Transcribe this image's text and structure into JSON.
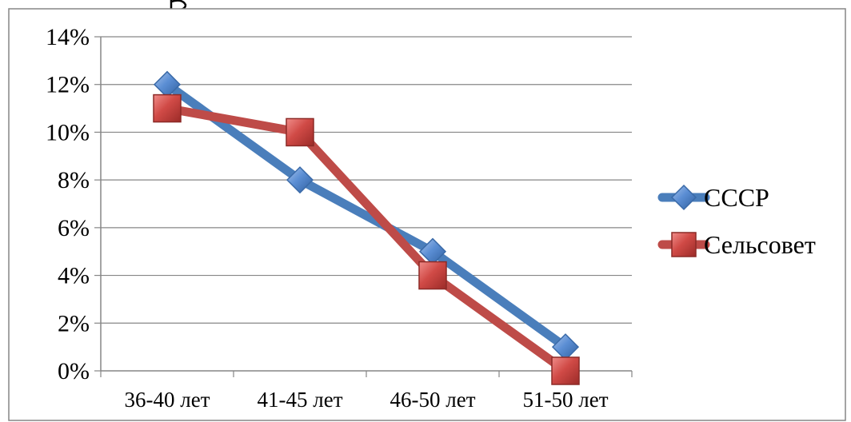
{
  "chart_data": {
    "type": "line",
    "categories": [
      "36-40 лет",
      "41-45 лет",
      "46-50 лет",
      "51-50 лет"
    ],
    "series": [
      {
        "name": "СССР",
        "values": [
          12,
          8,
          5,
          1
        ],
        "color": "#4a7ebb",
        "marker": "diamond"
      },
      {
        "name": "Сельсовет",
        "values": [
          11,
          10,
          4,
          0
        ],
        "color": "#be4b48",
        "marker": "square"
      }
    ],
    "title": "",
    "xlabel": "",
    "ylabel": "",
    "ylim": [
      0,
      14
    ],
    "yticks": [
      "0%",
      "2%",
      "4%",
      "6%",
      "8%",
      "10%",
      "12%",
      "14%"
    ],
    "ytick_values": [
      0,
      2,
      4,
      6,
      8,
      10,
      12,
      14
    ],
    "grid": true,
    "legend_position": "right"
  }
}
